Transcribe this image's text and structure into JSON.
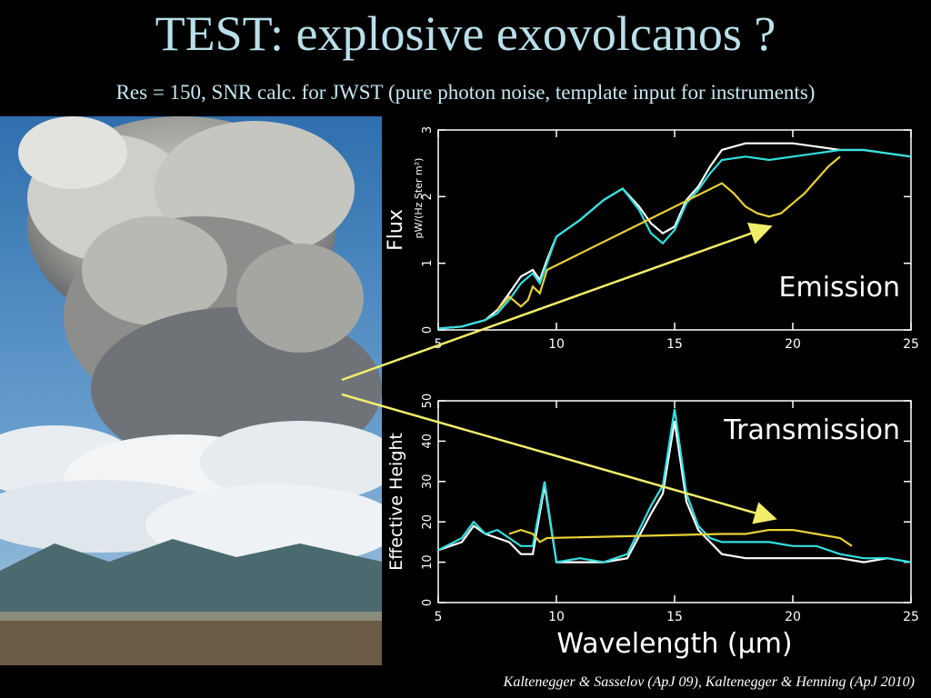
{
  "slide": {
    "title": "TEST: explosive exovolcanos ?",
    "subtitle": "Res = 150, SNR calc. for JWST (pure photon noise, template input for instruments)",
    "citation": "Kaltenegger & Sasselov (ApJ 09), Kaltenegger & Henning (ApJ 2010)"
  },
  "photo": {
    "icon": "volcanic-eruption-plume-photo"
  },
  "chart_data": [
    {
      "type": "line",
      "panel_label": "Emission",
      "ylabel": "Flux",
      "yunit": "pW/(Hz Ster m²)",
      "xlim": [
        5,
        25
      ],
      "ylim": [
        0,
        3
      ],
      "xticks": [
        5,
        10,
        15,
        20,
        25
      ],
      "yticks": [
        0,
        1,
        2,
        3
      ],
      "series": [
        {
          "color": "#ffffff",
          "x": [
            5,
            6,
            7,
            7.5,
            8,
            8.5,
            9,
            9.3,
            9.6,
            10,
            11,
            12,
            12.8,
            13.5,
            14,
            14.5,
            15,
            15.5,
            16,
            16.5,
            17,
            18,
            19,
            20,
            21,
            22,
            23,
            24,
            25
          ],
          "y": [
            0.02,
            0.05,
            0.15,
            0.3,
            0.55,
            0.8,
            0.9,
            0.75,
            1.05,
            1.4,
            1.65,
            1.95,
            2.12,
            1.85,
            1.6,
            1.45,
            1.55,
            1.95,
            2.15,
            2.45,
            2.7,
            2.8,
            2.8,
            2.8,
            2.75,
            2.7,
            2.7,
            2.65,
            2.6
          ]
        },
        {
          "color": "#33e0e0",
          "x": [
            5,
            6,
            7,
            7.5,
            8,
            8.5,
            9,
            9.3,
            9.6,
            10,
            11,
            12,
            12.8,
            13.5,
            14,
            14.5,
            15,
            15.5,
            16,
            16.5,
            17,
            18,
            19,
            20,
            21,
            22,
            23,
            24,
            25
          ],
          "y": [
            0.02,
            0.05,
            0.15,
            0.25,
            0.45,
            0.7,
            0.85,
            0.7,
            1.0,
            1.4,
            1.65,
            1.95,
            2.12,
            1.8,
            1.45,
            1.3,
            1.5,
            1.9,
            2.1,
            2.35,
            2.55,
            2.6,
            2.55,
            2.6,
            2.65,
            2.7,
            2.7,
            2.65,
            2.6
          ]
        },
        {
          "color": "#e8d23a",
          "x": [
            7.5,
            8,
            8.5,
            8.8,
            9,
            9.3,
            9.6,
            17,
            17.5,
            18,
            18.5,
            19,
            19.5,
            20,
            20.5,
            21,
            21.5,
            22
          ],
          "y": [
            0.3,
            0.5,
            0.35,
            0.45,
            0.65,
            0.55,
            0.9,
            2.2,
            2.05,
            1.85,
            1.75,
            1.7,
            1.75,
            1.9,
            2.05,
            2.25,
            2.45,
            2.6
          ]
        }
      ]
    },
    {
      "type": "line",
      "panel_label": "Transmission",
      "ylabel": "Effective Height",
      "xlabel": "Wavelength (μm)",
      "xlim": [
        5,
        25
      ],
      "ylim": [
        0,
        50
      ],
      "xticks": [
        5,
        10,
        15,
        20,
        25
      ],
      "yticks": [
        0,
        10,
        20,
        30,
        40,
        50
      ],
      "series": [
        {
          "color": "#ffffff",
          "x": [
            5,
            6,
            6.5,
            7,
            7.5,
            8,
            8.5,
            9,
            9.5,
            10,
            11,
            12,
            13,
            14,
            14.5,
            15,
            15.5,
            16,
            16.5,
            17,
            18,
            19,
            20,
            21,
            22,
            23,
            24,
            25
          ],
          "y": [
            13,
            15,
            19,
            17,
            16,
            15,
            12,
            12,
            29,
            10,
            10,
            10,
            11,
            22,
            27,
            45,
            25,
            18,
            15,
            12,
            11,
            11,
            11,
            11,
            11,
            10,
            11,
            10
          ]
        },
        {
          "color": "#33e0e0",
          "x": [
            5,
            6,
            6.5,
            7,
            7.5,
            8,
            8.5,
            9,
            9.5,
            10,
            11,
            12,
            13,
            14,
            14.5,
            15,
            15.5,
            16,
            16.5,
            17,
            18,
            19,
            20,
            21,
            22,
            23,
            24,
            25
          ],
          "y": [
            13,
            16,
            20,
            17,
            18,
            16,
            14,
            14,
            30,
            10,
            11,
            10,
            12,
            24,
            29,
            48,
            27,
            19,
            16,
            15,
            15,
            15,
            14,
            14,
            12,
            11,
            11,
            10
          ]
        },
        {
          "color": "#e8d23a",
          "x": [
            8,
            8.5,
            9,
            9.3,
            9.6,
            17,
            18,
            19,
            20,
            21,
            22,
            22.5
          ],
          "y": [
            17,
            18,
            17,
            15,
            16,
            17,
            17,
            18,
            18,
            17,
            16,
            14
          ]
        }
      ]
    }
  ]
}
